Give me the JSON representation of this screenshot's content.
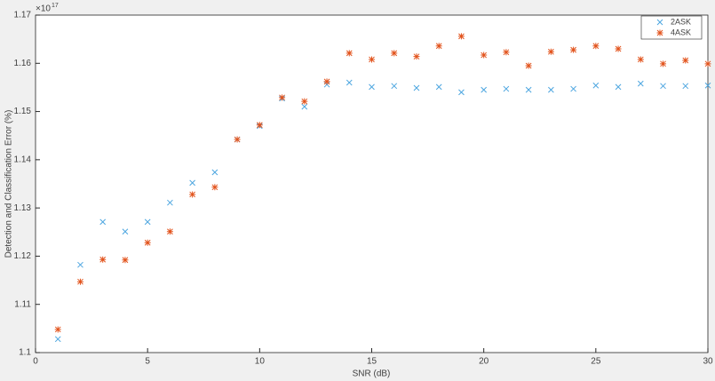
{
  "chart_data": {
    "type": "scatter",
    "xlabel": "SNR (dB)",
    "ylabel": "Detection and Classification Error (%)",
    "y_multiplier": {
      "base": "×10",
      "exponent": "17"
    },
    "x": [
      1,
      2,
      3,
      4,
      5,
      6,
      7,
      8,
      9,
      10,
      11,
      12,
      13,
      14,
      15,
      16,
      17,
      18,
      19,
      20,
      21,
      22,
      23,
      24,
      25,
      26,
      27,
      28,
      29,
      30
    ],
    "series": [
      {
        "name": "2ASK",
        "color": "#4da6e0",
        "marker": "x",
        "values": [
          1.1028,
          1.1182,
          1.1271,
          1.1251,
          1.1271,
          1.1311,
          1.1352,
          1.1374,
          1.1442,
          1.147,
          1.1527,
          1.151,
          1.1556,
          1.156,
          1.1551,
          1.1553,
          1.1549,
          1.1551,
          1.154,
          1.1545,
          1.1547,
          1.1545,
          1.1545,
          1.1547,
          1.1554,
          1.1551,
          1.1558,
          1.1553,
          1.1553,
          1.1554
        ]
      },
      {
        "name": "4ASK",
        "color": "#e2531c",
        "marker": "asterisk",
        "values": [
          1.1048,
          1.1147,
          1.1193,
          1.1192,
          1.1228,
          1.1251,
          1.1328,
          1.1343,
          1.1442,
          1.1472,
          1.1529,
          1.1521,
          1.1562,
          1.1621,
          1.1608,
          1.1621,
          1.1614,
          1.1636,
          1.1656,
          1.1617,
          1.1623,
          1.1595,
          1.1624,
          1.1628,
          1.1636,
          1.163,
          1.1608,
          1.1599,
          1.1606,
          1.1599
        ]
      }
    ],
    "xlim": [
      0,
      30
    ],
    "xticks": [
      0,
      5,
      10,
      15,
      20,
      25,
      30
    ],
    "ylim": [
      1.1,
      1.17
    ],
    "yticks": [
      1.1,
      1.11,
      1.12,
      1.13,
      1.14,
      1.15,
      1.16,
      1.17
    ],
    "legend": "top-right",
    "grid": false
  }
}
